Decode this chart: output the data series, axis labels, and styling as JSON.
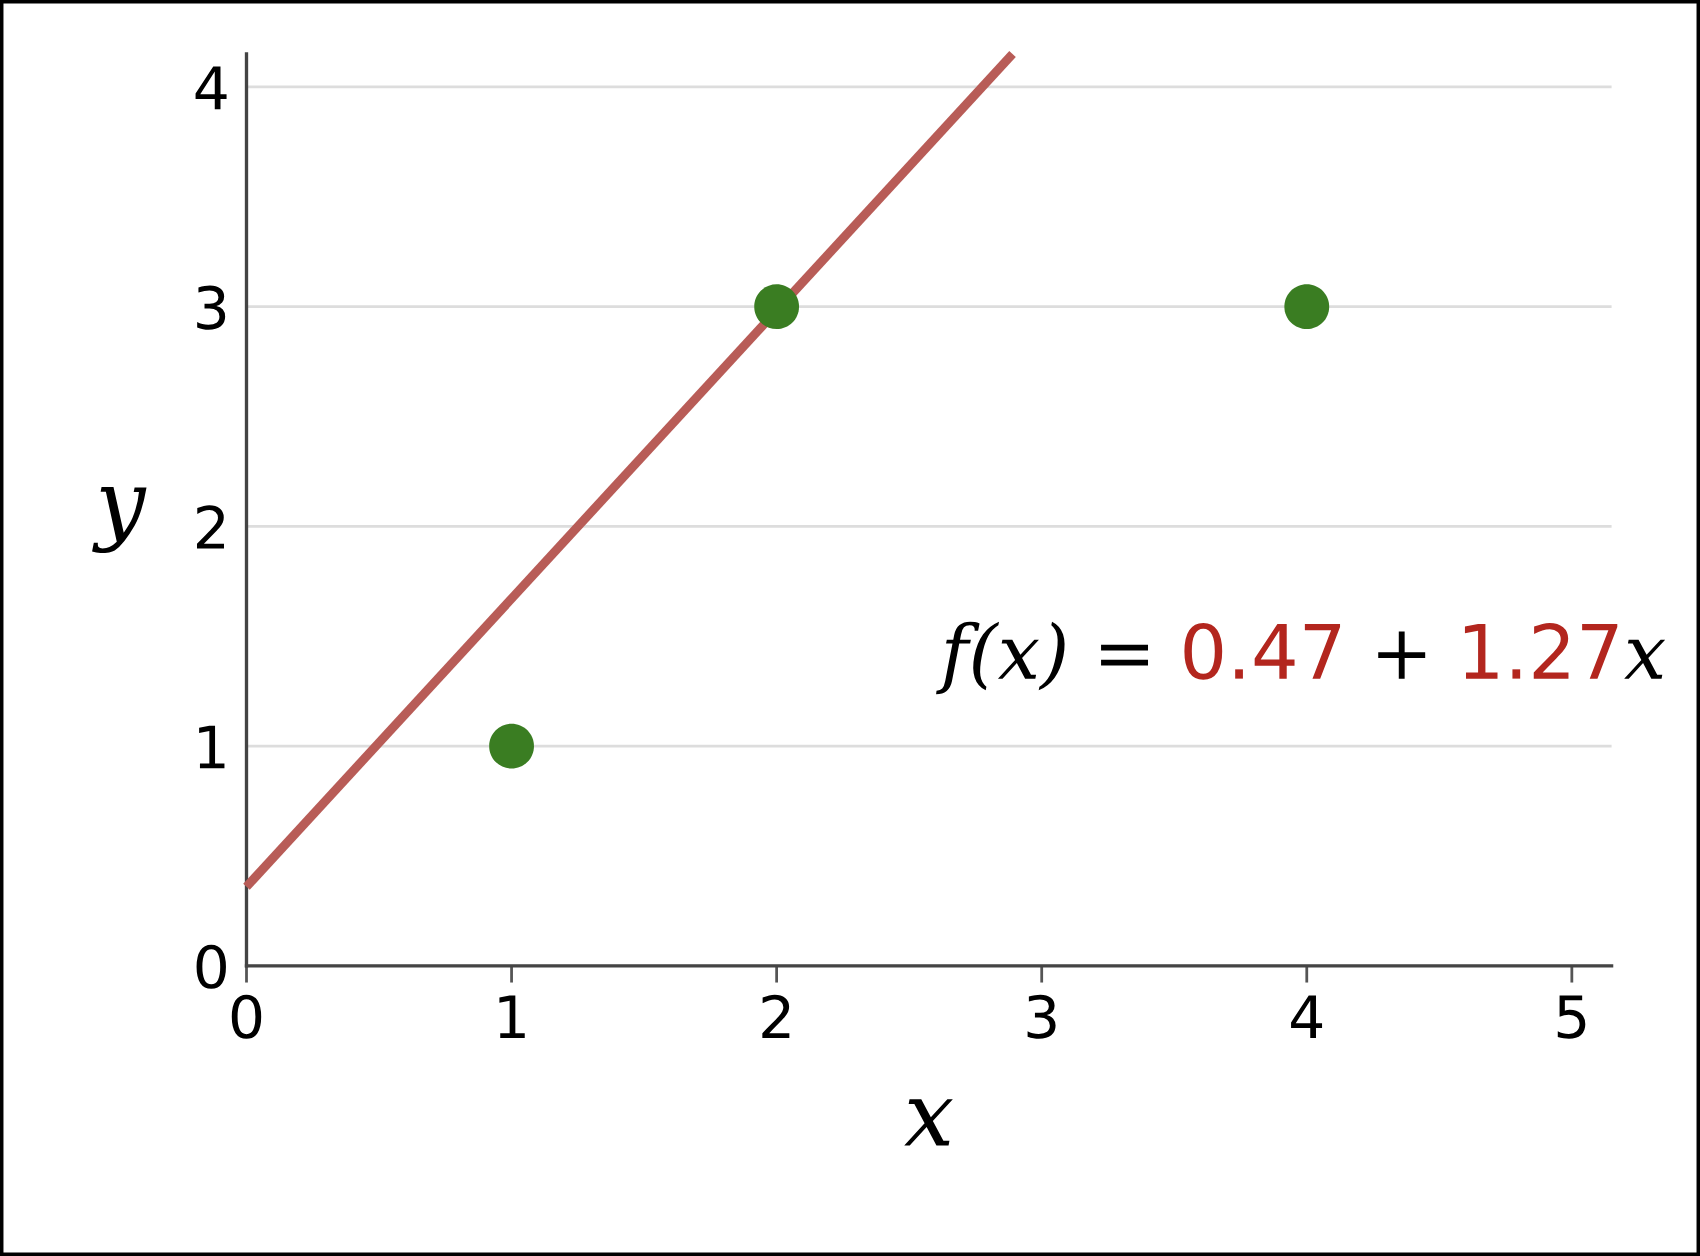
{
  "chart_data": {
    "type": "scatter",
    "xlabel": "x",
    "ylabel": "y",
    "series": [
      {
        "x": [
          1,
          2,
          4
        ],
        "values": [
          1,
          3,
          3
        ],
        "color": "#3a7d22",
        "marker": "circle"
      },
      {
        "type": "line",
        "x": [
          0,
          2.89
        ],
        "values": [
          0.36,
          4.15
        ],
        "color": "#b85c57",
        "marker": "none",
        "line_style": "solid"
      }
    ],
    "xlim": [
      0,
      5.15
    ],
    "ylim": [
      0,
      4.15
    ],
    "xticks": [
      0,
      1,
      2,
      3,
      4,
      5
    ],
    "yticks": [
      0,
      1,
      2,
      3,
      4
    ],
    "grid": "y",
    "annotations": [
      "f(x) = 0.47 + 1.27x"
    ]
  }
}
